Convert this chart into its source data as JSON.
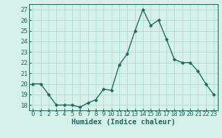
{
  "title": "",
  "xlabel": "Humidex (Indice chaleur)",
  "x_values": [
    0,
    1,
    2,
    3,
    4,
    5,
    6,
    7,
    8,
    9,
    10,
    11,
    12,
    13,
    14,
    15,
    16,
    17,
    18,
    19,
    20,
    21,
    22,
    23
  ],
  "y_values": [
    20.0,
    20.0,
    19.0,
    18.0,
    18.0,
    18.0,
    17.8,
    18.2,
    18.5,
    19.5,
    19.4,
    21.8,
    22.8,
    25.0,
    27.0,
    25.5,
    26.0,
    24.2,
    22.3,
    22.0,
    22.0,
    21.2,
    20.0,
    19.0
  ],
  "line_color": "#1a6b5a",
  "marker_color": "#1a6b5a",
  "bg_color": "#d6f0ea",
  "grid_color": "#a8d5c8",
  "ylim": [
    17.5,
    27.5
  ],
  "yticks": [
    18,
    19,
    20,
    21,
    22,
    23,
    24,
    25,
    26,
    27
  ],
  "xticks": [
    0,
    1,
    2,
    3,
    4,
    5,
    6,
    7,
    8,
    9,
    10,
    11,
    12,
    13,
    14,
    15,
    16,
    17,
    18,
    19,
    20,
    21,
    22,
    23
  ],
  "xlim": [
    -0.5,
    23.5
  ],
  "linewidth": 1.0,
  "markersize": 2.5,
  "xlabel_fontsize": 7.5,
  "tick_fontsize": 6.5
}
